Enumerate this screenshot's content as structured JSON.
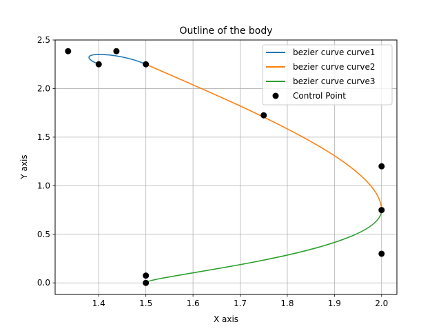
{
  "chart_data": {
    "type": "line",
    "title": "Outline of the body",
    "xlabel": "X axis",
    "ylabel": "Y axis",
    "xlim": [
      1.3075,
      2.0325
    ],
    "ylim": [
      -0.119,
      2.5
    ],
    "xticks": [
      1.4,
      1.5,
      1.6,
      1.7,
      1.8,
      1.9,
      2.0
    ],
    "xtick_labels": [
      "1.4",
      "1.5",
      "1.6",
      "1.7",
      "1.8",
      "1.9",
      "2.0"
    ],
    "yticks": [
      0.0,
      0.5,
      1.0,
      1.5,
      2.0,
      2.5
    ],
    "ytick_labels": [
      "0.0",
      "0.5",
      "1.0",
      "1.5",
      "2.0",
      "2.5"
    ],
    "grid": true,
    "legend_position": "top-right",
    "series": [
      {
        "name": "bezier curve curve1",
        "color": "#1f77b4",
        "control_points": [
          [
            1.4,
            2.25
          ],
          [
            1.335,
            2.385
          ],
          [
            1.4375,
            2.385
          ],
          [
            1.5,
            2.25
          ]
        ]
      },
      {
        "name": "bezier curve curve2",
        "color": "#ff7f0e",
        "control_points": [
          [
            1.5,
            2.25
          ],
          [
            1.75,
            1.725
          ],
          [
            2.0,
            1.2
          ],
          [
            2.0,
            0.75
          ]
        ]
      },
      {
        "name": "bezier curve curve3",
        "color": "#2ca02c",
        "control_points": [
          [
            2.0,
            0.75
          ],
          [
            2.0,
            0.3
          ],
          [
            1.5,
            0.075
          ],
          [
            1.5,
            0.0
          ]
        ]
      }
    ],
    "control_points_series": {
      "name": "Control Point",
      "color": "#000000",
      "points": [
        [
          1.4,
          2.25
        ],
        [
          1.335,
          2.385
        ],
        [
          1.4375,
          2.385
        ],
        [
          1.5,
          2.25
        ],
        [
          1.75,
          1.725
        ],
        [
          2.0,
          1.2
        ],
        [
          2.0,
          0.75
        ],
        [
          2.0,
          0.3
        ],
        [
          1.5,
          0.075
        ],
        [
          1.5,
          0.0
        ]
      ]
    }
  }
}
